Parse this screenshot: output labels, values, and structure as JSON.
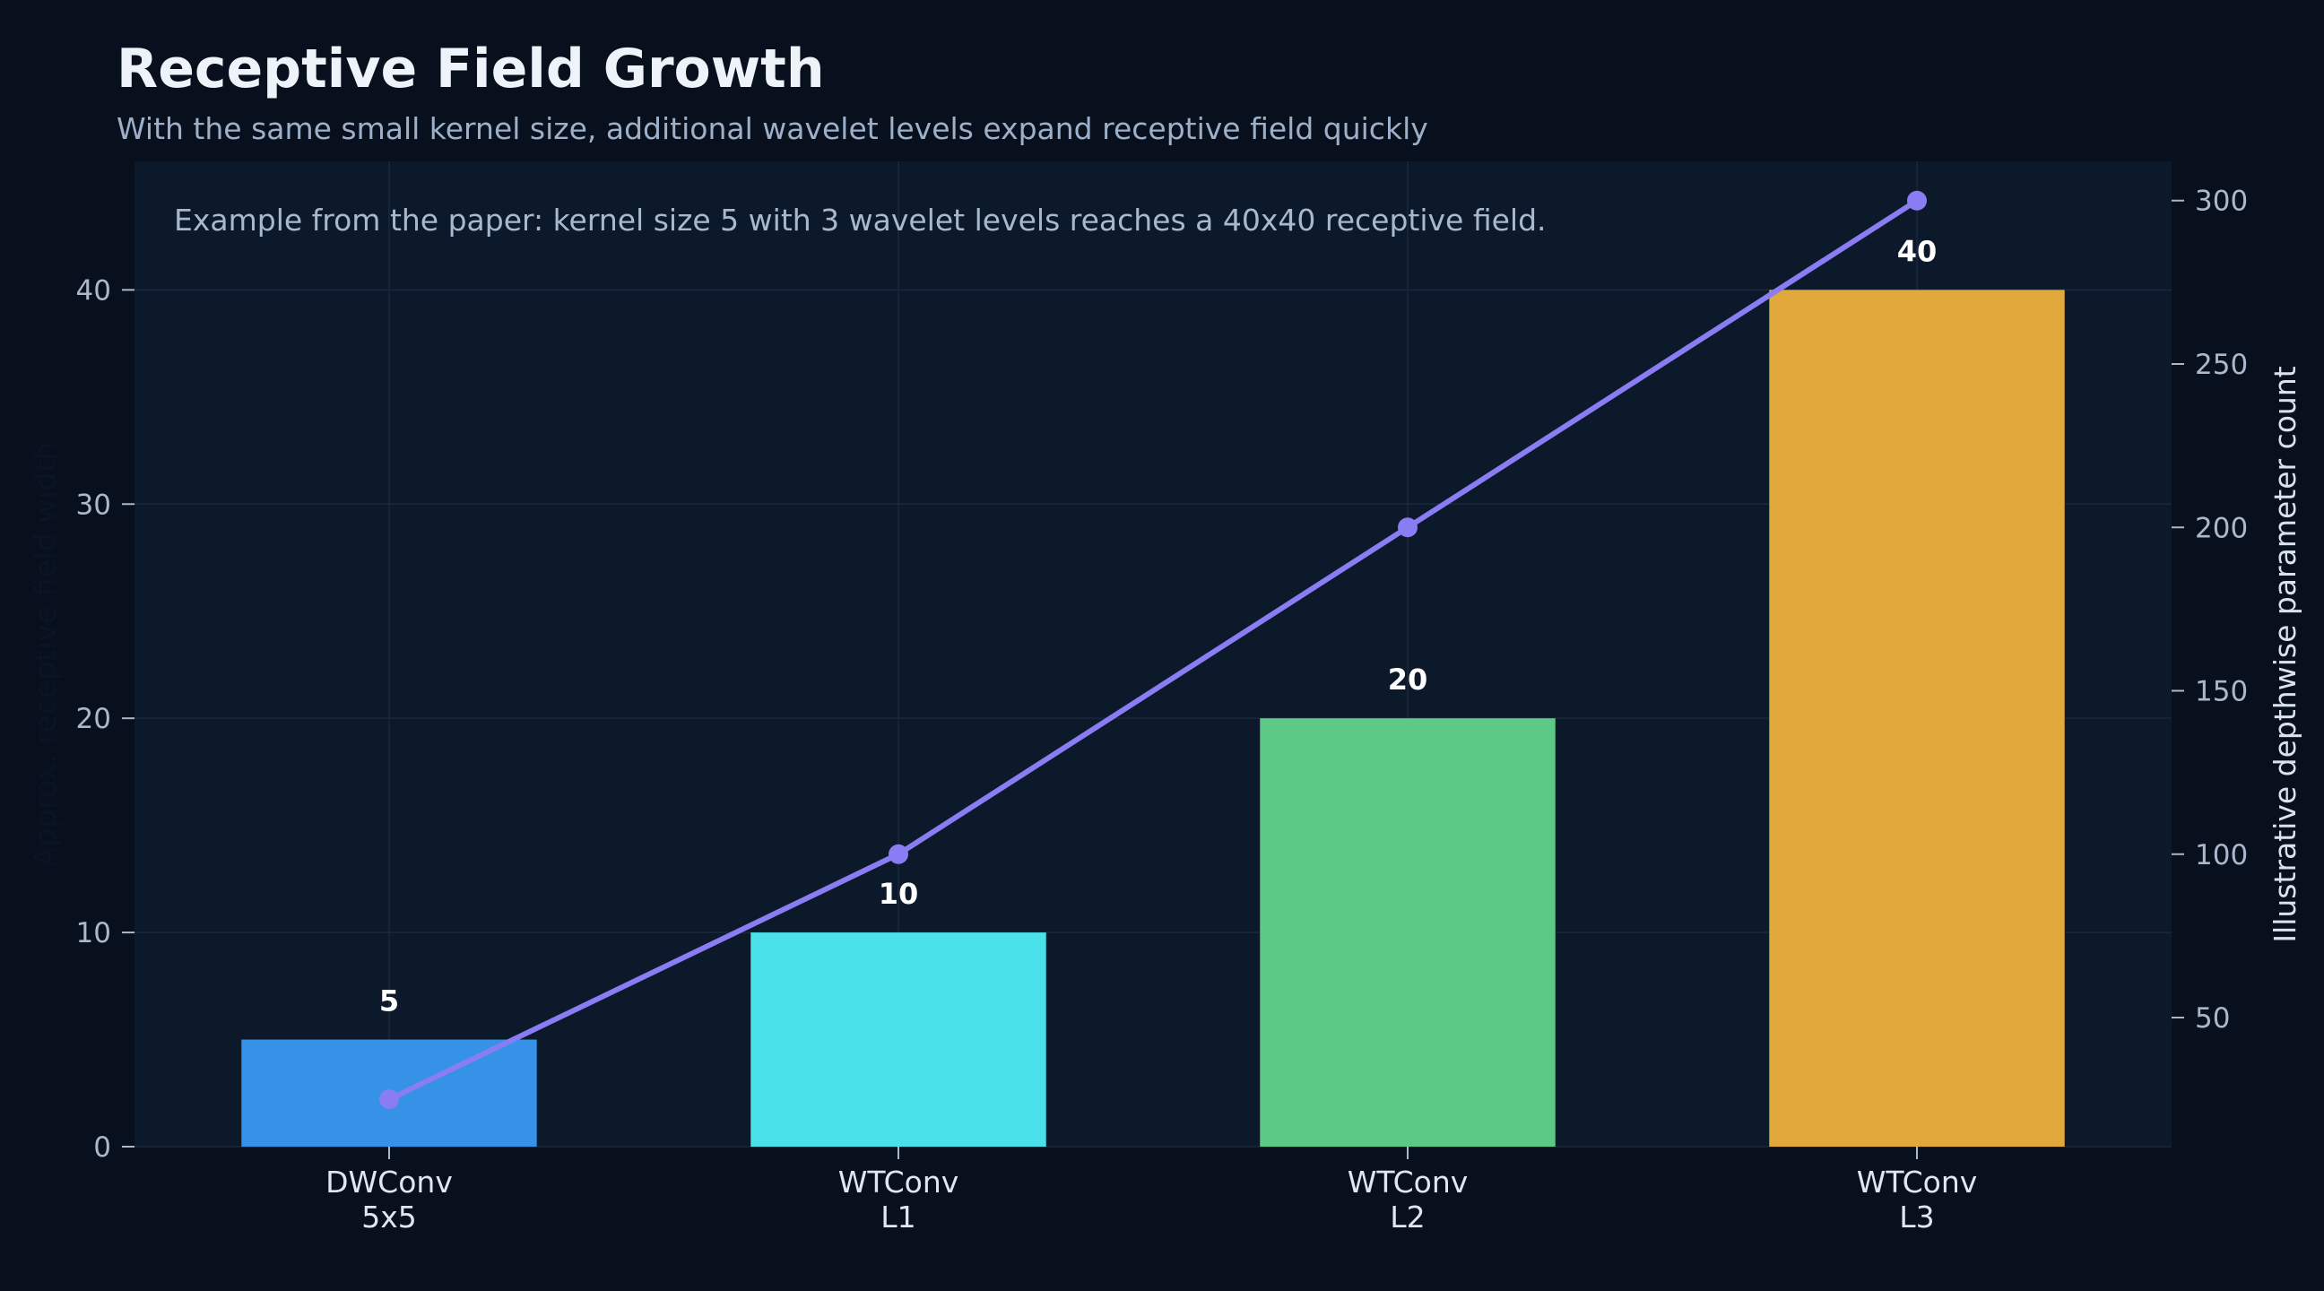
{
  "chart_data": {
    "type": "bar",
    "title": "Receptive Field Growth",
    "subtitle": "With the same small kernel size, additional wavelet levels expand receptive field quickly",
    "annotation": "Example from the paper: kernel size 5 with 3 wavelet levels reaches a 40x40 receptive field.",
    "categories": [
      [
        "DWConv",
        "5x5"
      ],
      [
        "WTConv",
        "L1"
      ],
      [
        "WTConv",
        "L2"
      ],
      [
        "WTConv",
        "L3"
      ]
    ],
    "ylabel": "Approx. receptive field width",
    "ylabel_right": "Illustrative depthwise parameter count",
    "ylim": [
      0,
      46
    ],
    "yticks": [
      0,
      10,
      20,
      30,
      40
    ],
    "ylim_right": [
      10.5,
      312
    ],
    "yticks_right": [
      50,
      100,
      150,
      200,
      250,
      300
    ],
    "grid": true,
    "series": [
      {
        "type": "bar",
        "axis": "left",
        "values": [
          5,
          10,
          20,
          40
        ],
        "labels": [
          "5",
          "10",
          "20",
          "40"
        ],
        "colors": [
          "#3592e6",
          "#4be1ea",
          "#5cca86",
          "#e1a83c"
        ]
      },
      {
        "type": "line",
        "axis": "right",
        "values": [
          25,
          100,
          200,
          300
        ],
        "color": "#8a7cf2"
      }
    ]
  }
}
